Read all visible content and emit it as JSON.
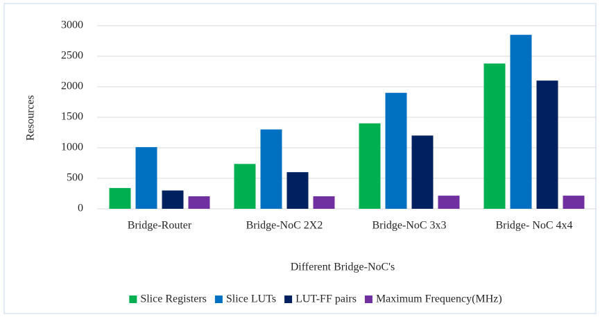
{
  "chart_data": {
    "type": "bar",
    "x_label": "Different Bridge-NoC's",
    "y_label": "Resources",
    "categories": [
      "Bridge-Router",
      "Bridge-NoC 2X2",
      "Bridge-NoC 3x3",
      "Bridge- NoC 4x4"
    ],
    "series": [
      {
        "name": "Slice Registers",
        "color": "#00b050",
        "values": [
          340,
          735,
          1400,
          2380
        ]
      },
      {
        "name": "Slice LUTs",
        "color": "#0070c0",
        "values": [
          1010,
          1300,
          1900,
          2850
        ]
      },
      {
        "name": "LUT-FF pairs",
        "color": "#002060",
        "values": [
          300,
          600,
          1200,
          2100
        ]
      },
      {
        "name": "Maximum Frequency(MHz)",
        "color": "#7030a0",
        "values": [
          205,
          205,
          215,
          215
        ]
      }
    ],
    "ylim": [
      0,
      3000
    ],
    "yticks": [
      0,
      500,
      1000,
      1500,
      2000,
      2500,
      3000
    ],
    "grid": true,
    "legend": "bottom"
  }
}
